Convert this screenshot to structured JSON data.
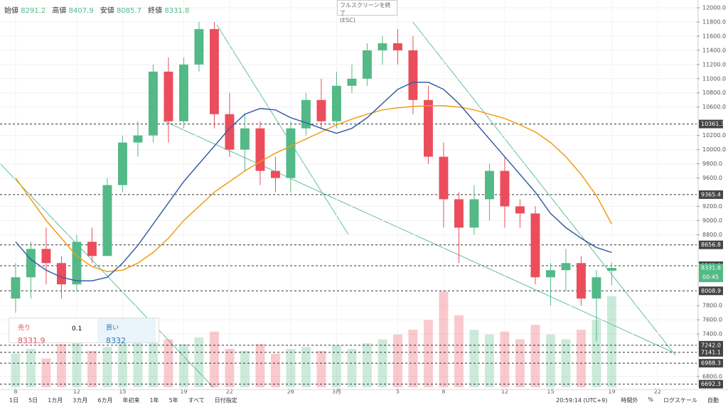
{
  "ui": {
    "legend": {
      "open_label": "始値",
      "open": 8291.2,
      "high_label": "高値",
      "high": 8407.9,
      "low_label": "安値",
      "low": 8085.7,
      "close_label": "終値",
      "close": 8331.8
    },
    "tooltip": {
      "title": "フルスクリーンを終了",
      "key": "(ESC)"
    },
    "order": {
      "sell_label": "売り",
      "sell": 8331.9,
      "qty": 0.1,
      "buy_label": "買い",
      "buy": 8332.0
    },
    "ranges": [
      "1日",
      "5日",
      "1カ月",
      "3カ月",
      "6カ月",
      "年初来",
      "1年",
      "5年",
      "すべて",
      "日付指定"
    ],
    "clock": "20:59:14 (UTC+9)",
    "toolbar": [
      "時間外",
      "%",
      "ログスケール",
      "自動"
    ],
    "countdown": "00:45"
  },
  "chart_data": {
    "type": "candlestick",
    "x": [
      0,
      1,
      2,
      3,
      4,
      5,
      6,
      7,
      8,
      9,
      10,
      11,
      12,
      13,
      14,
      15,
      16,
      17,
      18,
      19,
      20,
      21,
      22,
      23,
      24,
      25,
      26,
      27,
      28,
      29,
      30,
      31,
      32,
      33,
      34,
      35,
      36,
      37,
      38,
      39
    ],
    "open": [
      7900,
      8200,
      8600,
      8400,
      8100,
      8700,
      8500,
      9500,
      10100,
      10200,
      11100,
      10400,
      11200,
      11700,
      10500,
      10000,
      10300,
      9700,
      9600,
      10300,
      10700,
      10400,
      10900,
      11000,
      11400,
      11500,
      11400,
      10700,
      9900,
      9300,
      8900,
      9300,
      9700,
      9200,
      9100,
      8200,
      8300,
      8400,
      7900,
      8291.2
    ],
    "high": [
      8400,
      8700,
      8900,
      8500,
      8800,
      8900,
      9600,
      10200,
      10400,
      11200,
      11300,
      11300,
      11800,
      11800,
      10800,
      10500,
      10400,
      9900,
      10400,
      10800,
      11000,
      11100,
      11200,
      11500,
      11600,
      11700,
      11600,
      10900,
      10100,
      9400,
      9500,
      9800,
      9900,
      9300,
      9200,
      8400,
      8600,
      8500,
      8300,
      8407.9
    ],
    "low": [
      7700,
      7900,
      8100,
      7900,
      8000,
      8400,
      8500,
      9400,
      9900,
      10100,
      10100,
      10300,
      11100,
      10300,
      9900,
      9700,
      9500,
      9400,
      9400,
      10200,
      10300,
      10300,
      10800,
      10900,
      11200,
      11200,
      10500,
      9800,
      8900,
      8400,
      8800,
      9000,
      8900,
      8900,
      8100,
      7800,
      8000,
      7800,
      7300,
      8085.7
    ],
    "close": [
      8200,
      8600,
      8400,
      8100,
      8700,
      8500,
      9500,
      10100,
      10200,
      11100,
      10400,
      11200,
      11700,
      10500,
      10000,
      10300,
      9700,
      9600,
      10300,
      10700,
      10400,
      10900,
      11000,
      11400,
      11500,
      11400,
      10700,
      9900,
      9300,
      8900,
      9300,
      9700,
      9200,
      9100,
      8200,
      8300,
      8400,
      7900,
      8200,
      8331.8
    ],
    "up_color": "#53b987",
    "down_color": "#eb4d5c",
    "lines": [
      {
        "color": "#f39c12",
        "values": [
          9600,
          9300,
          9000,
          8750,
          8500,
          8350,
          8280,
          8300,
          8400,
          8550,
          8750,
          9000,
          9200,
          9400,
          9550,
          9700,
          9830,
          9950,
          10050,
          10150,
          10250,
          10350,
          10430,
          10500,
          10560,
          10590,
          10610,
          10620,
          10620,
          10600,
          10560,
          10500,
          10440,
          10350,
          10250,
          10100,
          9900,
          9650,
          9350,
          8950
        ]
      },
      {
        "color": "#3a5fa8",
        "values": [
          8700,
          8450,
          8300,
          8200,
          8150,
          8150,
          8200,
          8400,
          8650,
          8950,
          9250,
          9550,
          9800,
          10050,
          10300,
          10500,
          10580,
          10560,
          10450,
          10380,
          10300,
          10230,
          10300,
          10450,
          10650,
          10850,
          10950,
          10950,
          10850,
          10650,
          10400,
          10150,
          9900,
          9650,
          9400,
          9100,
          8900,
          8750,
          8620,
          8550
        ]
      }
    ],
    "volume": {
      "values": [
        35,
        40,
        30,
        45,
        50,
        38,
        42,
        55,
        60,
        48,
        50,
        45,
        52,
        58,
        40,
        38,
        45,
        35,
        40,
        42,
        38,
        44,
        40,
        46,
        50,
        55,
        60,
        70,
        100,
        75,
        60,
        55,
        58,
        50,
        65,
        55,
        50,
        60,
        70,
        95
      ],
      "ylim": [
        0,
        100
      ]
    },
    "xlim": [
      -1.02,
      44.56
    ],
    "xticks": [
      {
        "value": 0,
        "label": "8"
      },
      {
        "value": 4,
        "label": "12"
      },
      {
        "value": 7,
        "label": "15"
      },
      {
        "value": 11,
        "label": "19"
      },
      {
        "value": 14,
        "label": "22"
      },
      {
        "value": 18,
        "label": "26"
      },
      {
        "value": 21,
        "label": "3月"
      },
      {
        "value": 25,
        "label": "5"
      },
      {
        "value": 28,
        "label": "8"
      },
      {
        "value": 32,
        "label": "12"
      },
      {
        "value": 35,
        "label": "15"
      },
      {
        "value": 39,
        "label": "19"
      },
      {
        "value": 42,
        "label": "22"
      }
    ],
    "ylim": [
      6649,
      12110
    ],
    "yticks": [
      {
        "value": 12000,
        "label": "12000.0"
      },
      {
        "value": 11800,
        "label": "11800.0"
      },
      {
        "value": 11600,
        "label": "11600.0"
      },
      {
        "value": 11400,
        "label": "11400.0"
      },
      {
        "value": 11200,
        "label": "11200.0"
      },
      {
        "value": 11000,
        "label": "11000.0"
      },
      {
        "value": 10800,
        "label": "10800.0"
      },
      {
        "value": 10600,
        "label": "10600.0"
      },
      {
        "value": 10200,
        "label": "10200.0"
      },
      {
        "value": 10000,
        "label": "10000.0"
      },
      {
        "value": 9800,
        "label": "9800.0"
      },
      {
        "value": 9600,
        "label": "9600.0"
      },
      {
        "value": 9200,
        "label": "9200.0"
      },
      {
        "value": 9000,
        "label": "9000.0"
      },
      {
        "value": 8800,
        "label": "8800.0"
      },
      {
        "value": 7800,
        "label": "7800.0"
      },
      {
        "value": 7600,
        "label": "7600.0"
      },
      {
        "value": 7400,
        "label": "7400.0"
      },
      {
        "value": 6800,
        "label": "6800.0"
      }
    ],
    "levels": [
      10361.3,
      9365.4,
      8656.8,
      8362.8,
      8008.9,
      {
        "value": 7242,
        "label": "7242.0"
      },
      7141.1,
      6988.3,
      6692.3
    ],
    "last_price": 8331.8
  }
}
